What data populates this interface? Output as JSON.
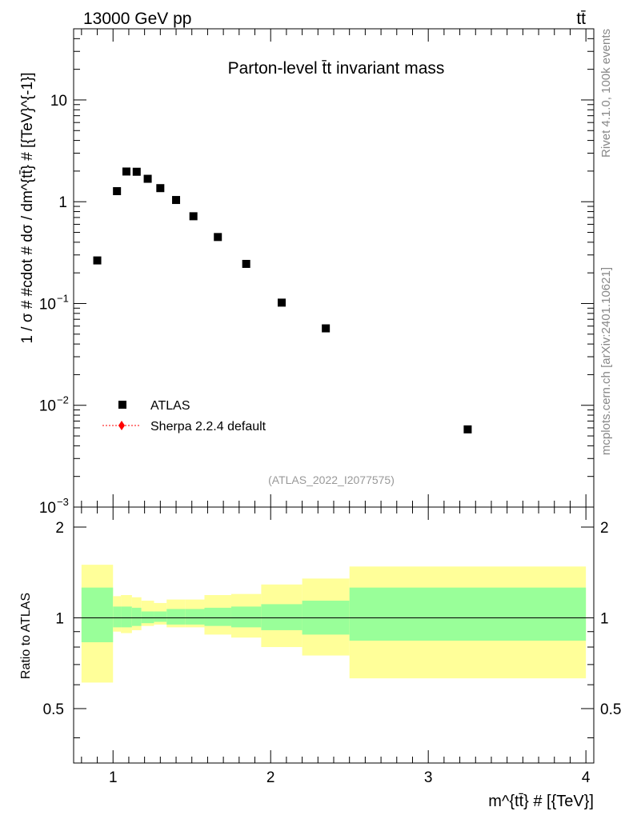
{
  "header": {
    "energy_label": "13000 GeV pp",
    "process_label": "tt̄"
  },
  "side_labels": {
    "rivet": "Rivet 4.1.0,  100k events",
    "mcplots": "mcplots.cern.ch [arXiv:2401.10621]"
  },
  "colors": {
    "data_marker": "#000000",
    "sherpa": "#ff0000",
    "band_inner": "#99ff99",
    "band_outer": "#ffff99",
    "analysis_label": "#999999"
  },
  "chart_data": [
    {
      "type": "scatter",
      "title": "Parton-level t̄t invariant mass",
      "analysis_id": "(ATLAS_2022_I2077575)",
      "xlabel": "m^{tt̄} # [{TeV}]",
      "ylabel": "1 / σ # #cdot # dσ / dm^{tt̄} # [{TeV}^{-1}]",
      "yscale": "log",
      "xlim": [
        0.75,
        4.05
      ],
      "ylim": [
        0.001,
        50
      ],
      "y_ticks": [
        {
          "value": 10,
          "label": "10"
        },
        {
          "value": 1,
          "label": "1"
        },
        {
          "value": 0.1,
          "label": "10",
          "exp": "−1"
        },
        {
          "value": 0.01,
          "label": "10",
          "exp": "−2"
        },
        {
          "value": 0.001,
          "label": "10",
          "exp": "−3"
        }
      ],
      "legend": {
        "position": "lower-left",
        "entries": [
          {
            "label": "ATLAS",
            "style": "square-marker"
          },
          {
            "label": "Sherpa 2.2.4 default",
            "style": "red-dotted-diamond"
          }
        ]
      },
      "series": [
        {
          "name": "ATLAS",
          "points": [
            {
              "x": 0.9,
              "y": 0.265
            },
            {
              "x": 1.025,
              "y": 1.27
            },
            {
              "x": 1.085,
              "y": 1.98
            },
            {
              "x": 1.15,
              "y": 1.97
            },
            {
              "x": 1.22,
              "y": 1.68
            },
            {
              "x": 1.3,
              "y": 1.36
            },
            {
              "x": 1.4,
              "y": 1.04
            },
            {
              "x": 1.51,
              "y": 0.72
            },
            {
              "x": 1.665,
              "y": 0.45
            },
            {
              "x": 1.845,
              "y": 0.245
            },
            {
              "x": 2.07,
              "y": 0.102
            },
            {
              "x": 2.35,
              "y": 0.057
            },
            {
              "x": 3.25,
              "y": 0.0058
            }
          ]
        }
      ]
    },
    {
      "type": "area",
      "ylabel": "Ratio to ATLAS",
      "xlim": [
        0.75,
        4.05
      ],
      "ylim": [
        0.33,
        2.33
      ],
      "x_ticks": [
        {
          "value": 1,
          "label": "1"
        },
        {
          "value": 2,
          "label": "2"
        },
        {
          "value": 3,
          "label": "3"
        },
        {
          "value": 4,
          "label": "4"
        }
      ],
      "y_ticks": [
        {
          "value": 2,
          "label": "2"
        },
        {
          "value": 1,
          "label": "1"
        },
        {
          "value": 0.5,
          "label": "0.5"
        }
      ],
      "reference_line": 1,
      "bands": [
        {
          "x0": 0.8,
          "x1": 1.0,
          "inner": [
            0.83,
            1.26
          ],
          "outer": [
            0.61,
            1.5
          ]
        },
        {
          "x0": 1.0,
          "x1": 1.05,
          "inner": [
            0.93,
            1.09
          ],
          "outer": [
            0.9,
            1.18
          ]
        },
        {
          "x0": 1.05,
          "x1": 1.12,
          "inner": [
            0.93,
            1.09
          ],
          "outer": [
            0.89,
            1.19
          ]
        },
        {
          "x0": 1.12,
          "x1": 1.18,
          "inner": [
            0.94,
            1.08
          ],
          "outer": [
            0.91,
            1.17
          ]
        },
        {
          "x0": 1.18,
          "x1": 1.26,
          "inner": [
            0.96,
            1.05
          ],
          "outer": [
            0.94,
            1.14
          ]
        },
        {
          "x0": 1.26,
          "x1": 1.34,
          "inner": [
            0.97,
            1.05
          ],
          "outer": [
            0.95,
            1.12
          ]
        },
        {
          "x0": 1.34,
          "x1": 1.46,
          "inner": [
            0.95,
            1.07
          ],
          "outer": [
            0.93,
            1.15
          ]
        },
        {
          "x0": 1.46,
          "x1": 1.58,
          "inner": [
            0.95,
            1.07
          ],
          "outer": [
            0.93,
            1.15
          ]
        },
        {
          "x0": 1.58,
          "x1": 1.75,
          "inner": [
            0.94,
            1.08
          ],
          "outer": [
            0.88,
            1.19
          ]
        },
        {
          "x0": 1.75,
          "x1": 1.94,
          "inner": [
            0.93,
            1.09
          ],
          "outer": [
            0.86,
            1.2
          ]
        },
        {
          "x0": 1.94,
          "x1": 2.2,
          "inner": [
            0.91,
            1.11
          ],
          "outer": [
            0.8,
            1.29
          ]
        },
        {
          "x0": 2.2,
          "x1": 2.5,
          "inner": [
            0.88,
            1.14
          ],
          "outer": [
            0.75,
            1.35
          ]
        },
        {
          "x0": 2.5,
          "x1": 4.0,
          "inner": [
            0.84,
            1.26
          ],
          "outer": [
            0.63,
            1.48
          ]
        }
      ]
    }
  ]
}
